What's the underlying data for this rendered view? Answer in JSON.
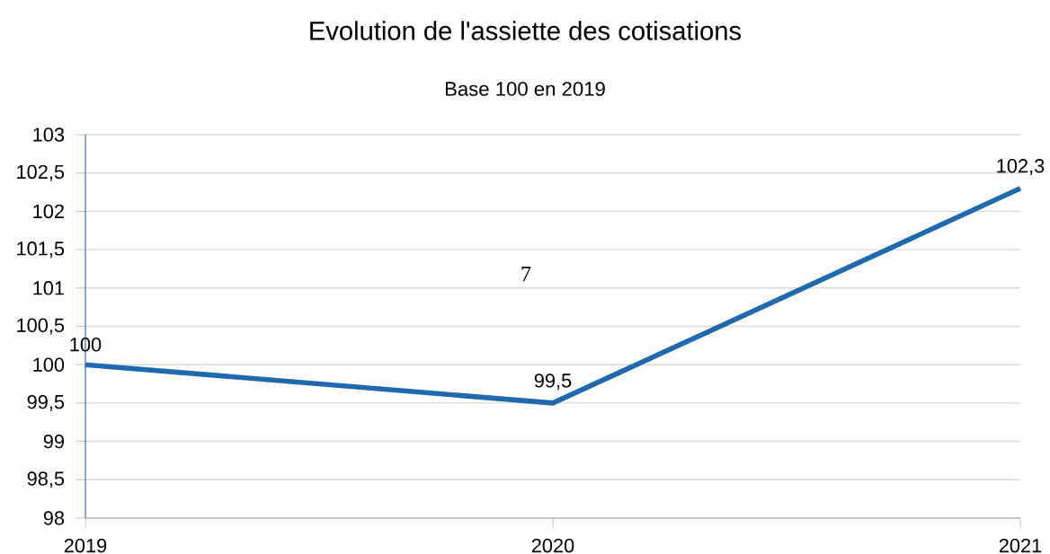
{
  "chart_data": {
    "type": "line",
    "title": "Evolution de l'assiette des cotisations",
    "subtitle": "Base 100 en 2019",
    "categories": [
      "2019",
      "2020",
      "2021"
    ],
    "values": [
      100,
      99.5,
      102.3
    ],
    "value_labels": [
      "100",
      "99,5",
      "102,3"
    ],
    "color": "#1f69ae",
    "ylim": [
      98,
      103
    ],
    "yticks": [
      98,
      {
        "value": 98.5,
        "label": "98,5"
      },
      99,
      {
        "value": 99.5,
        "label": "99,5"
      },
      100,
      {
        "value": 100.5,
        "label": "100,5"
      },
      101,
      {
        "value": 101.5,
        "label": "101,5"
      },
      102,
      {
        "value": 102.5,
        "label": "102,5"
      },
      103
    ],
    "grid": "y",
    "marker": "none",
    "line_style": "solid",
    "annotations": [
      "7"
    ]
  }
}
